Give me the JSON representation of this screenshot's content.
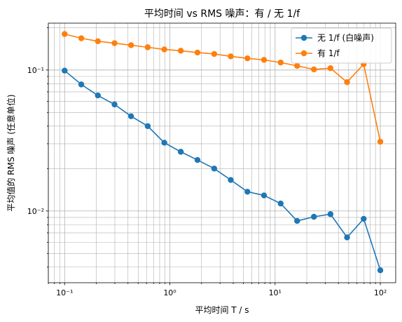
{
  "chart_data": {
    "type": "line",
    "title": "平均时间 vs RMS 噪声：有 / 无 1/f",
    "xlabel": "平均时间 T / s",
    "ylabel": "平均值的 RMS 噪声 (任意单位)",
    "xscale": "log",
    "yscale": "log",
    "xlim": [
      0.07,
      140
    ],
    "ylim": [
      0.0031,
      0.215
    ],
    "x_tick_labels": [
      "10⁻¹",
      "10⁰",
      "10¹",
      "10²"
    ],
    "y_tick_labels": [
      "10⁻²",
      "10⁻¹"
    ],
    "grid": "both (major and minor)",
    "legend_position": "top-right",
    "x": [
      0.1,
      0.144,
      0.207,
      0.298,
      0.428,
      0.616,
      0.886,
      1.27,
      1.83,
      2.64,
      3.79,
      5.46,
      7.85,
      11.3,
      16.2,
      23.4,
      33.6,
      48.3,
      69.5,
      100
    ],
    "series": [
      {
        "name": "无 1/f (白噪声)",
        "color": "#1f77b4",
        "marker": "circle",
        "values": [
          0.099,
          0.079,
          0.066,
          0.057,
          0.047,
          0.04,
          0.0305,
          0.0263,
          0.023,
          0.02,
          0.0166,
          0.0137,
          0.0129,
          0.0113,
          0.0085,
          0.0091,
          0.0095,
          0.0065,
          0.0088,
          0.0038
        ]
      },
      {
        "name": "有 1/f",
        "color": "#ff7f0e",
        "marker": "circle",
        "values": [
          0.18,
          0.168,
          0.16,
          0.155,
          0.15,
          0.145,
          0.14,
          0.137,
          0.133,
          0.13,
          0.125,
          0.121,
          0.118,
          0.113,
          0.107,
          0.101,
          0.103,
          0.082,
          0.11,
          0.031
        ]
      }
    ]
  }
}
